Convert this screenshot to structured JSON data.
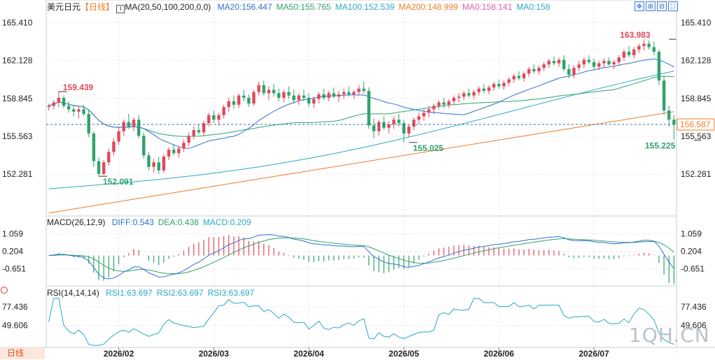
{
  "header": {
    "symbol": "美元日元",
    "period_tag": "【日线】",
    "ma_title": "MA(20,50,100,200,0,0)",
    "ma_values": [
      {
        "label": "MA20:156.447",
        "color": "#2f6fd1"
      },
      {
        "label": "MA50:155.765",
        "color": "#2fa36b"
      },
      {
        "label": "MA100:152.539",
        "color": "#2aa8c8"
      },
      {
        "label": "MA200:148.999",
        "color": "#f07c28"
      },
      {
        "label": "MA0:158.141",
        "color": "#e05c9c"
      },
      {
        "label": "MA0:158",
        "color": "#2aa8c8"
      }
    ],
    "icons": [
      "move-icon",
      "zoom-in-icon",
      "zoom-out-icon",
      "fullscreen-icon"
    ]
  },
  "macd_header": {
    "title": "MACD(26,12,9)",
    "values": [
      {
        "label": "DIFF:0.543",
        "color": "#2f6fd1"
      },
      {
        "label": "DEA:0.438",
        "color": "#2fa36b"
      },
      {
        "label": "MACD:0.209",
        "color": "#2aa8c8"
      }
    ]
  },
  "rsi_header": {
    "title": "RSI(14,14,14)",
    "values": [
      {
        "label": "RSI1:63.697",
        "color": "#2aa8c8"
      },
      {
        "label": "RSI2:63.697",
        "color": "#2aa8c8"
      },
      {
        "label": "RSI3:63.697",
        "color": "#2aa8c8"
      }
    ]
  },
  "footer": {
    "period_button": "日线",
    "watermark": "1QH.CN"
  },
  "colors": {
    "up": "#e04a5a",
    "down": "#2fa36b",
    "grid": "#dfe3ea",
    "current": "#1f6fb5",
    "label_box": "#f07c28"
  },
  "chart_data": {
    "type": "candlestick",
    "title": "",
    "x_ticks": [
      "2026/02",
      "2026/03",
      "2026/04",
      "2026/05",
      "2026/06",
      "2026/07"
    ],
    "x_tick_index": [
      14,
      33,
      52,
      71,
      90,
      109
    ],
    "main": {
      "y_ticks": [
        165.41,
        162.128,
        158.845,
        155.563,
        152.281
      ],
      "y_range": [
        148.7,
        166.3
      ],
      "current_price": "156.587",
      "annotations": [
        {
          "text": "159.439",
          "index": 2,
          "value": 159.439,
          "color": "#e04a5a"
        },
        {
          "text": "152.091",
          "index": 10,
          "value": 152.091,
          "color": "#2fa36b"
        },
        {
          "text": "155.025",
          "index": 72,
          "value": 155.025,
          "color": "#2fa36b"
        },
        {
          "text": "163.983",
          "index": 124,
          "value": 163.983,
          "color": "#e04a5a"
        },
        {
          "text": "155.225",
          "index": 129,
          "value": 155.225,
          "color": "#2fa36b"
        }
      ],
      "candles": [
        [
          158.1,
          158.4,
          157.8,
          158.2
        ],
        [
          158.2,
          158.7,
          157.9,
          158.5
        ],
        [
          158.5,
          159.44,
          158.1,
          158.9
        ],
        [
          158.9,
          159.1,
          158.0,
          158.2
        ],
        [
          158.2,
          158.6,
          157.6,
          157.9
        ],
        [
          157.9,
          158.3,
          157.3,
          157.7
        ],
        [
          157.7,
          158.2,
          157.1,
          157.9
        ],
        [
          157.9,
          158.3,
          157.3,
          157.5
        ],
        [
          157.5,
          157.9,
          155.5,
          155.8
        ],
        [
          155.8,
          156.0,
          152.9,
          153.4
        ],
        [
          153.4,
          153.7,
          152.09,
          152.3
        ],
        [
          152.3,
          153.5,
          152.2,
          153.3
        ],
        [
          153.3,
          154.5,
          153.0,
          154.2
        ],
        [
          154.2,
          155.4,
          153.9,
          155.1
        ],
        [
          155.1,
          156.3,
          154.8,
          156.0
        ],
        [
          156.0,
          157.0,
          155.6,
          156.8
        ],
        [
          156.8,
          157.5,
          156.2,
          156.4
        ],
        [
          156.4,
          157.2,
          156.0,
          157.0
        ],
        [
          157.0,
          157.4,
          155.4,
          155.6
        ],
        [
          155.6,
          155.9,
          153.6,
          153.9
        ],
        [
          153.9,
          154.2,
          152.6,
          152.9
        ],
        [
          152.9,
          153.6,
          152.4,
          153.3
        ],
        [
          153.3,
          153.8,
          152.3,
          152.6
        ],
        [
          152.6,
          154.0,
          152.4,
          153.8
        ],
        [
          153.8,
          154.6,
          153.5,
          154.4
        ],
        [
          154.4,
          154.9,
          153.9,
          154.1
        ],
        [
          154.1,
          154.7,
          153.7,
          154.5
        ],
        [
          154.5,
          155.3,
          154.2,
          155.0
        ],
        [
          155.0,
          155.9,
          154.7,
          155.6
        ],
        [
          155.6,
          156.4,
          155.3,
          156.1
        ],
        [
          156.1,
          156.6,
          155.7,
          155.9
        ],
        [
          155.9,
          156.9,
          155.6,
          156.7
        ],
        [
          156.7,
          157.6,
          156.4,
          157.4
        ],
        [
          157.4,
          157.8,
          156.7,
          157.0
        ],
        [
          157.0,
          157.6,
          156.5,
          157.4
        ],
        [
          157.4,
          158.3,
          157.1,
          158.1
        ],
        [
          158.1,
          158.9,
          157.7,
          158.6
        ],
        [
          158.6,
          159.1,
          157.9,
          158.3
        ],
        [
          158.3,
          159.3,
          158.0,
          159.1
        ],
        [
          159.1,
          159.6,
          158.6,
          158.9
        ],
        [
          158.9,
          159.2,
          158.1,
          158.4
        ],
        [
          158.4,
          159.6,
          158.2,
          159.4
        ],
        [
          159.4,
          160.3,
          159.1,
          160.0
        ],
        [
          160.0,
          160.4,
          159.1,
          159.3
        ],
        [
          159.3,
          159.9,
          158.7,
          159.6
        ],
        [
          159.6,
          160.1,
          159.0,
          159.3
        ],
        [
          159.3,
          159.7,
          158.6,
          158.9
        ],
        [
          158.9,
          159.6,
          158.5,
          159.4
        ],
        [
          159.4,
          159.9,
          158.8,
          159.1
        ],
        [
          159.1,
          159.6,
          158.4,
          158.7
        ],
        [
          158.7,
          159.3,
          158.3,
          159.1
        ],
        [
          159.1,
          159.6,
          158.6,
          158.9
        ],
        [
          158.9,
          159.3,
          158.1,
          158.4
        ],
        [
          158.4,
          159.0,
          158.0,
          158.8
        ],
        [
          158.8,
          159.4,
          158.4,
          159.2
        ],
        [
          159.2,
          159.7,
          158.7,
          158.9
        ],
        [
          158.9,
          159.5,
          158.6,
          159.3
        ],
        [
          159.3,
          159.8,
          158.9,
          159.0
        ],
        [
          159.0,
          159.5,
          158.5,
          159.2
        ],
        [
          159.2,
          159.7,
          158.8,
          159.4
        ],
        [
          159.4,
          159.9,
          159.0,
          159.2
        ],
        [
          159.2,
          159.6,
          158.8,
          159.4
        ],
        [
          159.4,
          160.0,
          159.1,
          159.7
        ],
        [
          159.7,
          160.3,
          159.3,
          159.5
        ],
        [
          159.5,
          159.8,
          156.2,
          156.5
        ],
        [
          156.5,
          157.1,
          155.4,
          156.0
        ],
        [
          156.0,
          157.0,
          155.6,
          156.8
        ],
        [
          156.8,
          157.3,
          156.1,
          156.3
        ],
        [
          156.3,
          156.9,
          155.8,
          156.6
        ],
        [
          156.6,
          157.3,
          156.2,
          157.0
        ],
        [
          157.0,
          157.5,
          156.4,
          156.7
        ],
        [
          156.7,
          157.0,
          155.03,
          155.8
        ],
        [
          155.8,
          156.6,
          155.5,
          156.4
        ],
        [
          156.4,
          157.2,
          156.1,
          157.0
        ],
        [
          157.0,
          157.6,
          156.6,
          157.3
        ],
        [
          157.3,
          157.9,
          156.9,
          157.6
        ],
        [
          157.6,
          158.2,
          157.2,
          157.9
        ],
        [
          157.9,
          158.4,
          157.5,
          158.2
        ],
        [
          158.2,
          158.7,
          157.9,
          158.5
        ],
        [
          158.5,
          158.9,
          158.0,
          158.3
        ],
        [
          158.3,
          158.8,
          158.0,
          158.6
        ],
        [
          158.6,
          159.1,
          158.3,
          158.9
        ],
        [
          158.9,
          159.3,
          158.5,
          159.0
        ],
        [
          159.0,
          159.5,
          158.7,
          159.3
        ],
        [
          159.3,
          159.7,
          158.9,
          159.1
        ],
        [
          159.1,
          159.6,
          158.8,
          159.4
        ],
        [
          159.4,
          159.9,
          159.1,
          159.7
        ],
        [
          159.7,
          160.1,
          159.3,
          159.5
        ],
        [
          159.5,
          160.0,
          159.2,
          159.8
        ],
        [
          159.8,
          160.3,
          159.5,
          160.1
        ],
        [
          160.1,
          160.5,
          159.7,
          159.9
        ],
        [
          159.9,
          160.4,
          159.6,
          160.2
        ],
        [
          160.2,
          160.7,
          159.9,
          160.5
        ],
        [
          160.5,
          161.0,
          160.2,
          160.8
        ],
        [
          160.8,
          161.2,
          160.4,
          160.6
        ],
        [
          160.6,
          161.2,
          160.3,
          161.0
        ],
        [
          161.0,
          161.6,
          160.7,
          161.4
        ],
        [
          161.4,
          161.8,
          161.0,
          161.2
        ],
        [
          161.2,
          161.7,
          160.9,
          161.5
        ],
        [
          161.5,
          162.0,
          161.2,
          161.8
        ],
        [
          161.8,
          162.3,
          161.5,
          162.1
        ],
        [
          162.1,
          162.5,
          161.7,
          161.9
        ],
        [
          161.9,
          162.4,
          161.6,
          162.2
        ],
        [
          162.2,
          162.6,
          161.2,
          161.4
        ],
        [
          161.4,
          161.8,
          160.6,
          160.9
        ],
        [
          160.9,
          161.7,
          160.6,
          161.5
        ],
        [
          161.5,
          162.1,
          161.2,
          161.8
        ],
        [
          161.8,
          162.4,
          161.5,
          162.2
        ],
        [
          162.2,
          162.6,
          161.8,
          162.0
        ],
        [
          162.0,
          162.3,
          161.3,
          161.6
        ],
        [
          161.6,
          162.1,
          161.3,
          161.9
        ],
        [
          161.9,
          162.3,
          161.5,
          162.1
        ],
        [
          162.1,
          162.4,
          161.7,
          161.8
        ],
        [
          161.8,
          162.2,
          161.4,
          162.0
        ],
        [
          162.0,
          162.6,
          161.7,
          162.4
        ],
        [
          162.4,
          163.1,
          162.1,
          162.9
        ],
        [
          162.9,
          163.4,
          162.4,
          162.6
        ],
        [
          162.6,
          163.3,
          162.3,
          163.1
        ],
        [
          163.1,
          163.6,
          162.8,
          163.4
        ],
        [
          163.4,
          163.98,
          163.0,
          163.6
        ],
        [
          163.6,
          163.9,
          163.1,
          163.3
        ],
        [
          163.3,
          163.8,
          162.6,
          162.9
        ],
        [
          162.9,
          163.1,
          160.0,
          160.4
        ],
        [
          160.4,
          160.8,
          157.4,
          157.8
        ],
        [
          157.8,
          158.2,
          156.4,
          157.0
        ],
        [
          157.0,
          157.4,
          155.23,
          156.59
        ]
      ],
      "ma_lines": [
        {
          "name": "MA20",
          "color": "#2f6fd1"
        },
        {
          "name": "MA50",
          "color": "#2fa36b"
        },
        {
          "name": "MA100",
          "color": "#2aa8c8"
        },
        {
          "name": "MA200",
          "color": "#f07c28"
        }
      ]
    },
    "macd": {
      "y_ticks": [
        1.059,
        0.204,
        -0.651
      ],
      "y_range": [
        -1.45,
        1.35
      ]
    },
    "rsi": {
      "y_ticks": [
        77.436,
        49.606
      ],
      "y_range": [
        18,
        92
      ]
    }
  }
}
